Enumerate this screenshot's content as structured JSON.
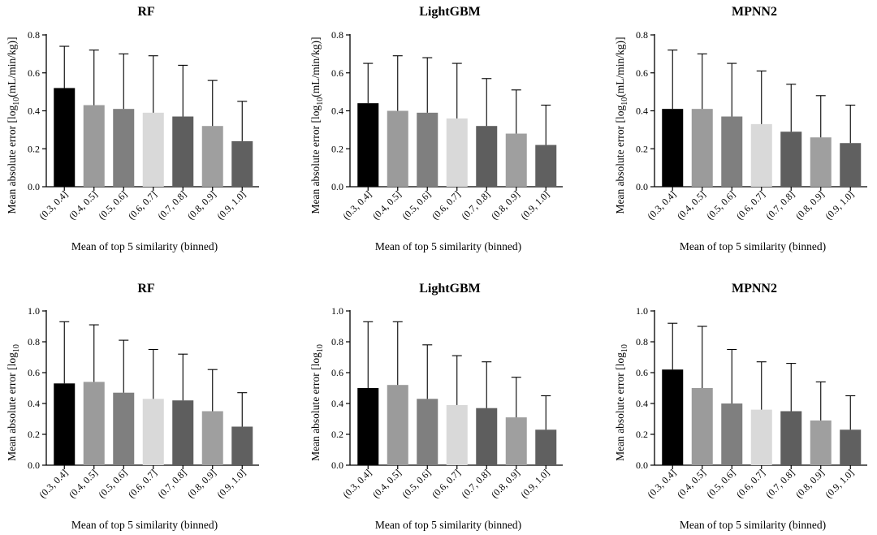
{
  "chart_data": [
    {
      "type": "bar",
      "title": "RF",
      "categories": [
        "(0.3, 0.4]",
        "(0.4, 0.5]",
        "(0.5, 0.6]",
        "(0.6, 0.7]",
        "(0.7, 0.8]",
        "(0.8, 0.9]",
        "(0.9, 1.0]"
      ],
      "values": [
        0.52,
        0.43,
        0.41,
        0.39,
        0.37,
        0.32,
        0.24
      ],
      "error_upper": [
        0.74,
        0.72,
        0.7,
        0.69,
        0.64,
        0.56,
        0.45
      ],
      "ylabel_main": "Mean absolute error [log",
      "ylabel_sub": "10",
      "ylabel_tail": "(mL/min/kg)]",
      "xlabel": "Mean of top 5 similarity (binned)",
      "ylim": [
        0,
        0.8
      ],
      "yticks": [
        "0.0",
        "0.2",
        "0.4",
        "0.6",
        "0.8"
      ],
      "colors": [
        "#000000",
        "#9b9b9b",
        "#7f7f7f",
        "#d9d9d9",
        "#5e5e5e",
        "#9f9f9f",
        "#606060"
      ]
    },
    {
      "type": "bar",
      "title": "LightGBM",
      "categories": [
        "(0.3, 0.4]",
        "(0.4, 0.5]",
        "(0.5, 0.6]",
        "(0.6, 0.7]",
        "(0.7, 0.8]",
        "(0.8, 0.9]",
        "(0.9, 1.0]"
      ],
      "values": [
        0.44,
        0.4,
        0.39,
        0.36,
        0.32,
        0.28,
        0.22
      ],
      "error_upper": [
        0.65,
        0.69,
        0.68,
        0.65,
        0.57,
        0.51,
        0.43
      ],
      "ylabel_main": "Mean absolute error [log",
      "ylabel_sub": "10",
      "ylabel_tail": "(mL/min/kg)]",
      "xlabel": "Mean of top 5 similarity (binned)",
      "ylim": [
        0,
        0.8
      ],
      "yticks": [
        "0.0",
        "0.2",
        "0.4",
        "0.6",
        "0.8"
      ],
      "colors": [
        "#000000",
        "#9b9b9b",
        "#7f7f7f",
        "#d9d9d9",
        "#5e5e5e",
        "#9f9f9f",
        "#606060"
      ]
    },
    {
      "type": "bar",
      "title": "MPNN2",
      "categories": [
        "(0.3, 0.4]",
        "(0.4, 0.5]",
        "(0.5, 0.6]",
        "(0.6, 0.7]",
        "(0.7, 0.8]",
        "(0.8, 0.9]",
        "(0.9, 1.0]"
      ],
      "values": [
        0.41,
        0.41,
        0.37,
        0.33,
        0.29,
        0.26,
        0.23
      ],
      "error_upper": [
        0.72,
        0.7,
        0.65,
        0.61,
        0.54,
        0.48,
        0.43
      ],
      "ylabel_main": "Mean absolute error [log",
      "ylabel_sub": "10",
      "ylabel_tail": "(mL/min/kg)]",
      "xlabel": "Mean of top 5 similarity (binned)",
      "ylim": [
        0,
        0.8
      ],
      "yticks": [
        "0.0",
        "0.2",
        "0.4",
        "0.6",
        "0.8"
      ],
      "colors": [
        "#000000",
        "#9b9b9b",
        "#7f7f7f",
        "#d9d9d9",
        "#5e5e5e",
        "#9f9f9f",
        "#606060"
      ]
    },
    {
      "type": "bar",
      "title": "RF",
      "categories": [
        "(0.3, 0.4]",
        "(0.4, 0.5]",
        "(0.5, 0.6]",
        "(0.6, 0.7]",
        "(0.7, 0.8]",
        "(0.8, 0.9]",
        "(0.9, 1.0]"
      ],
      "values": [
        0.53,
        0.54,
        0.47,
        0.43,
        0.42,
        0.35,
        0.25
      ],
      "error_upper": [
        0.93,
        0.91,
        0.81,
        0.75,
        0.72,
        0.62,
        0.47
      ],
      "ylabel_main": "Mean absolute error [log",
      "ylabel_sub": "10",
      "ylabel_tail": "",
      "xlabel": "Mean of top 5 similarity (binned)",
      "ylim": [
        0,
        1.0
      ],
      "yticks": [
        "0.0",
        "0.2",
        "0.4",
        "0.6",
        "0.8",
        "1.0"
      ],
      "colors": [
        "#000000",
        "#9b9b9b",
        "#7f7f7f",
        "#d9d9d9",
        "#5e5e5e",
        "#9f9f9f",
        "#606060"
      ]
    },
    {
      "type": "bar",
      "title": "LightGBM",
      "categories": [
        "(0.3, 0.4]",
        "(0.4, 0.5]",
        "(0.5, 0.6]",
        "(0.6, 0.7]",
        "(0.7, 0.8]",
        "(0.8, 0.9]",
        "(0.9, 1.0]"
      ],
      "values": [
        0.5,
        0.52,
        0.43,
        0.39,
        0.37,
        0.31,
        0.23
      ],
      "error_upper": [
        0.93,
        0.93,
        0.78,
        0.71,
        0.67,
        0.57,
        0.45
      ],
      "ylabel_main": "Mean absolute error [log",
      "ylabel_sub": "10",
      "ylabel_tail": "",
      "xlabel": "Mean of top 5 similarity (binned)",
      "ylim": [
        0,
        1.0
      ],
      "yticks": [
        "0.0",
        "0.2",
        "0.4",
        "0.6",
        "0.8",
        "1.0"
      ],
      "colors": [
        "#000000",
        "#9b9b9b",
        "#7f7f7f",
        "#d9d9d9",
        "#5e5e5e",
        "#9f9f9f",
        "#606060"
      ]
    },
    {
      "type": "bar",
      "title": "MPNN2",
      "categories": [
        "(0.3, 0.4]",
        "(0.4, 0.5]",
        "(0.5, 0.6]",
        "(0.6, 0.7]",
        "(0.7, 0.8]",
        "(0.8, 0.9]",
        "(0.9, 1.0]"
      ],
      "values": [
        0.62,
        0.5,
        0.4,
        0.36,
        0.35,
        0.29,
        0.23
      ],
      "error_upper": [
        0.92,
        0.9,
        0.75,
        0.67,
        0.66,
        0.54,
        0.45
      ],
      "ylabel_main": "Mean absolute error [log",
      "ylabel_sub": "10",
      "ylabel_tail": "",
      "xlabel": "Mean of top 5 similarity (binned)",
      "ylim": [
        0,
        1.0
      ],
      "yticks": [
        "0.0",
        "0.2",
        "0.4",
        "0.6",
        "0.8",
        "1.0"
      ],
      "colors": [
        "#000000",
        "#9b9b9b",
        "#7f7f7f",
        "#d9d9d9",
        "#5e5e5e",
        "#9f9f9f",
        "#606060"
      ]
    }
  ]
}
